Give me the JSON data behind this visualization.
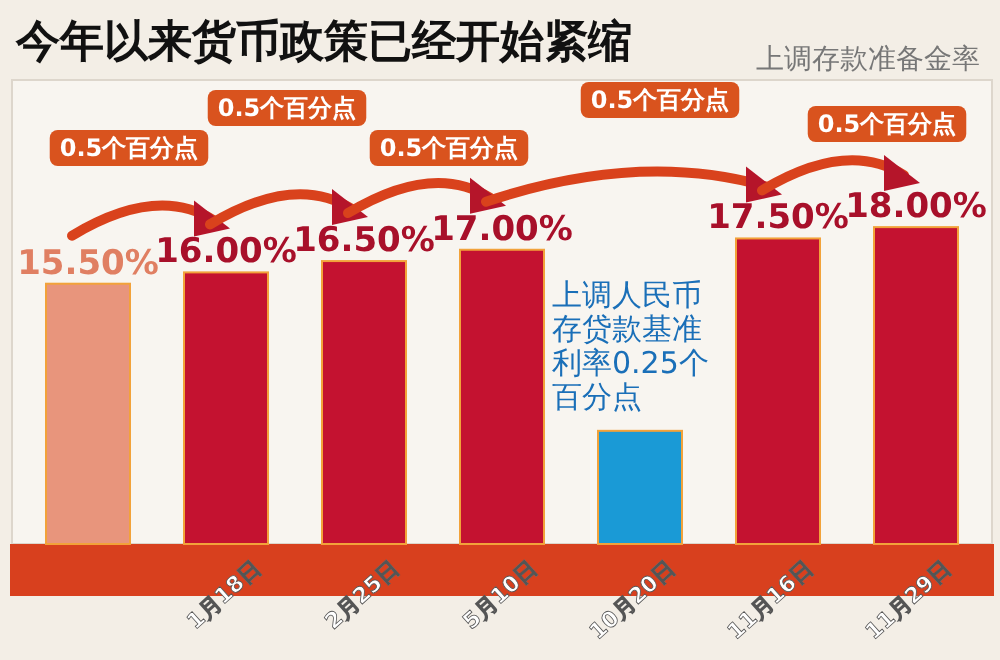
{
  "chart_data": {
    "type": "bar",
    "ylim": [
      4,
      24.5
    ],
    "title": "今年以来货币政策已经开始紧缩",
    "categories": [
      null,
      "1月18日",
      "2月25日",
      "5月10日",
      "10月20日",
      "11月16日",
      "11月29日"
    ],
    "values": [
      15.5,
      16,
      16.5,
      17,
      9,
      17.5,
      18
    ],
    "colors": [
      "#e8957c",
      "#c41230",
      "#c41230",
      "#c41230",
      "#1a9ad6",
      "#c41230",
      "#c41230"
    ],
    "value_labels": [
      "15.50%",
      "16.00%",
      "16.50%",
      "17.00%",
      null,
      "17.50%",
      "18.00%"
    ],
    "annotations": [
      "上调存款准备金率",
      "0.5个百分点",
      "0.5个百分点",
      "0.5个百分点",
      "0.5个百分点",
      "0.5个百分点",
      {
        "text": "上调人民币存贷款基准利率0.25个百分点",
        "x": "10月20日",
        "y": 9
      }
    ]
  }
}
